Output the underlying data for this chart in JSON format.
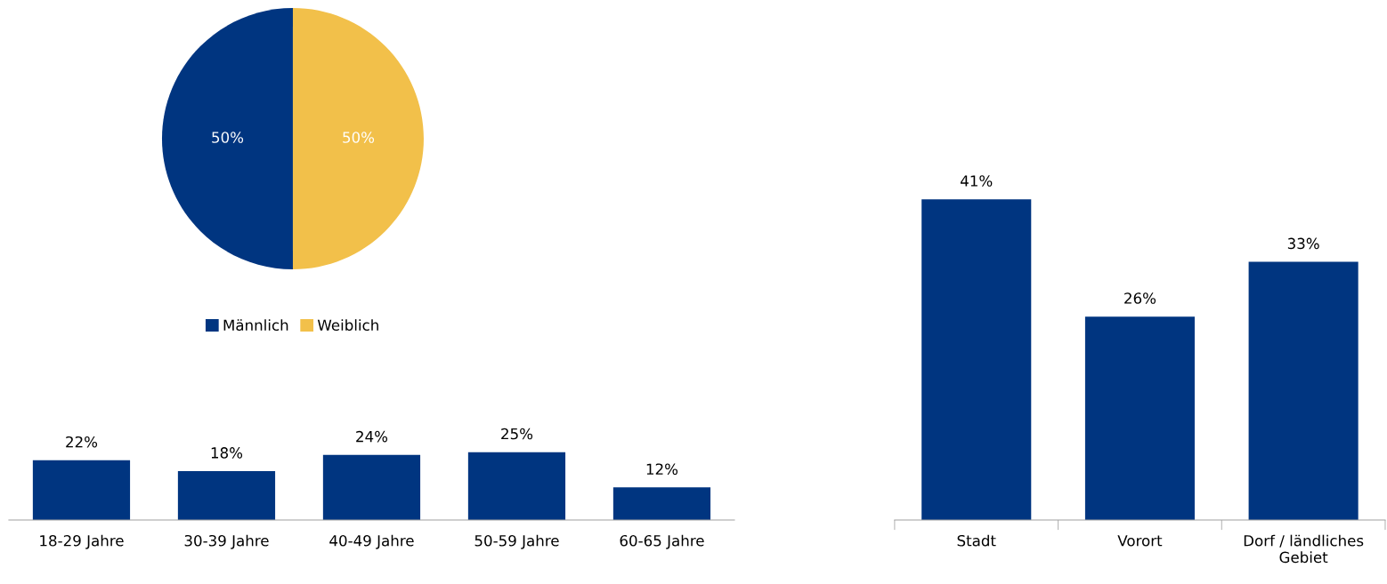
{
  "chart_data": [
    {
      "type": "pie",
      "categories": [
        "Männlich",
        "Weiblich"
      ],
      "values": [
        50,
        50
      ],
      "colors": [
        "#003580",
        "#f2c04a"
      ],
      "value_labels": [
        "50%",
        "50%"
      ],
      "legend": "bottom"
    },
    {
      "type": "bar",
      "categories": [
        "18-29 Jahre",
        "30-39 Jahre",
        "40-49 Jahre",
        "50-59 Jahre",
        "60-65 Jahre"
      ],
      "values": [
        22,
        18,
        24,
        25,
        12
      ],
      "value_labels": [
        "22%",
        "18%",
        "24%",
        "25%",
        "12%"
      ],
      "color": "#003580"
    },
    {
      "type": "bar",
      "categories": [
        "Stadt",
        "Vorort",
        "Dorf / ländliches\nGebiet"
      ],
      "values": [
        41,
        26,
        33
      ],
      "value_labels": [
        "41%",
        "26%",
        "33%"
      ],
      "color": "#003580"
    }
  ]
}
